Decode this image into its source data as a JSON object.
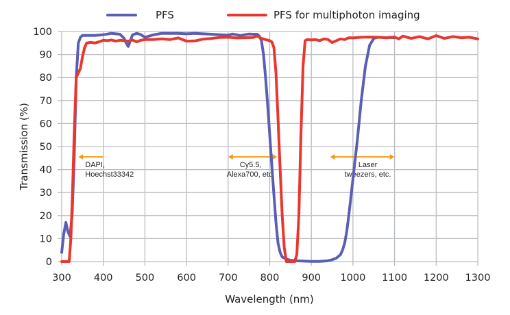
{
  "chart_data": {
    "type": "line",
    "title": "",
    "xlabel": "Wavelength (nm)",
    "ylabel": "Transmission (%)",
    "xlim": [
      300,
      1300
    ],
    "ylim": [
      0,
      100
    ],
    "xticks": [
      300,
      400,
      500,
      600,
      700,
      800,
      900,
      1000,
      1100,
      1200,
      1300
    ],
    "yticks": [
      0,
      10,
      20,
      30,
      40,
      50,
      60,
      70,
      80,
      90,
      100
    ],
    "grid": true,
    "legend_position": "top-center",
    "series": [
      {
        "name": "PFS",
        "color": "#5b5fb4",
        "x": [
          300,
          305,
          310,
          315,
          320,
          325,
          330,
          335,
          340,
          345,
          350,
          360,
          380,
          400,
          420,
          440,
          450,
          455,
          460,
          465,
          470,
          480,
          490,
          500,
          520,
          540,
          560,
          580,
          600,
          620,
          640,
          660,
          680,
          700,
          710,
          720,
          730,
          740,
          750,
          760,
          770,
          775,
          780,
          785,
          790,
          795,
          800,
          805,
          810,
          815,
          820,
          825,
          830,
          840,
          850,
          860,
          880,
          900,
          920,
          940,
          950,
          960,
          970,
          975,
          980,
          985,
          990,
          995,
          1000,
          1010,
          1020,
          1030,
          1040,
          1050,
          1060,
          1070,
          1080,
          1090,
          1100
        ],
        "y": [
          4,
          12,
          17,
          13,
          11,
          20,
          45,
          80,
          95,
          97.5,
          98.3,
          98.3,
          98.3,
          98.6,
          99.2,
          98.8,
          97,
          95,
          93.5,
          96,
          98.5,
          99.2,
          98.7,
          97.5,
          98.5,
          99.2,
          99.2,
          99.2,
          99,
          99.2,
          99,
          98.8,
          98.6,
          98.4,
          98.9,
          98.6,
          98.2,
          98.6,
          98.9,
          98.8,
          98.8,
          98,
          96,
          90,
          80,
          68,
          55,
          42,
          29,
          17,
          8,
          4,
          2,
          1,
          0.6,
          0.4,
          0.2,
          0.1,
          0.1,
          0.4,
          0.8,
          1.5,
          3,
          5,
          8,
          13,
          20,
          28,
          36,
          52,
          70,
          85,
          94,
          97,
          97.5,
          97.4,
          97.3,
          97.4,
          97.3
        ]
      },
      {
        "name": "PFS for multiphoton imaging",
        "color": "#e8372f",
        "x": [
          300,
          310,
          318,
          322,
          326,
          330,
          335,
          340,
          345,
          350,
          355,
          360,
          370,
          380,
          390,
          400,
          410,
          420,
          430,
          440,
          450,
          460,
          470,
          480,
          490,
          500,
          520,
          540,
          560,
          580,
          600,
          620,
          640,
          660,
          680,
          700,
          720,
          740,
          760,
          770,
          780,
          790,
          800,
          805,
          810,
          815,
          820,
          825,
          830,
          835,
          840,
          845,
          850,
          855,
          860,
          865,
          870,
          875,
          880,
          885,
          890,
          900,
          910,
          920,
          930,
          940,
          950,
          960,
          970,
          980,
          990,
          1000,
          1020,
          1040,
          1060,
          1080,
          1100,
          1110,
          1120,
          1140,
          1160,
          1180,
          1200,
          1220,
          1240,
          1260,
          1280,
          1300
        ],
        "y": [
          0,
          0,
          0,
          10,
          30,
          55,
          80,
          82,
          84,
          89,
          93,
          95,
          95.3,
          95,
          95.5,
          96.2,
          96,
          96.3,
          95.8,
          96.2,
          96,
          95.8,
          96.3,
          95.5,
          96.2,
          96.5,
          96.5,
          96.8,
          96.5,
          97.2,
          95.8,
          95.9,
          96.7,
          97,
          97.4,
          97.5,
          97.2,
          97.3,
          97.4,
          98,
          97,
          96.5,
          96,
          95.5,
          93,
          82,
          62,
          40,
          20,
          6,
          0,
          0,
          0,
          0,
          0,
          3,
          20,
          55,
          85,
          96,
          96.5,
          96.3,
          96.5,
          96,
          96.8,
          96.5,
          95.2,
          96,
          96.8,
          96.5,
          97.3,
          97.2,
          97.5,
          97.6,
          97.5,
          97.3,
          97.6,
          96.8,
          98,
          97,
          97.8,
          96.8,
          98.2,
          97,
          97.8,
          97.3,
          97.5,
          96.8
        ]
      }
    ],
    "annotations": [
      {
        "lines": [
          "DAPI,",
          "Hoechst33342"
        ],
        "arrow": "left",
        "x_from": 400,
        "x_to": 340,
        "y": 45.5
      },
      {
        "lines": [
          "Cy5.5,",
          "Alexa700, etc."
        ],
        "arrow": "both",
        "x_from": 700,
        "x_to": 818,
        "y": 45.5
      },
      {
        "lines": [
          "Laser",
          "tweezers, etc."
        ],
        "arrow": "both",
        "x_from": 945,
        "x_to": 1100,
        "y": 45.5
      }
    ],
    "annotation_color": "#f39c12"
  }
}
